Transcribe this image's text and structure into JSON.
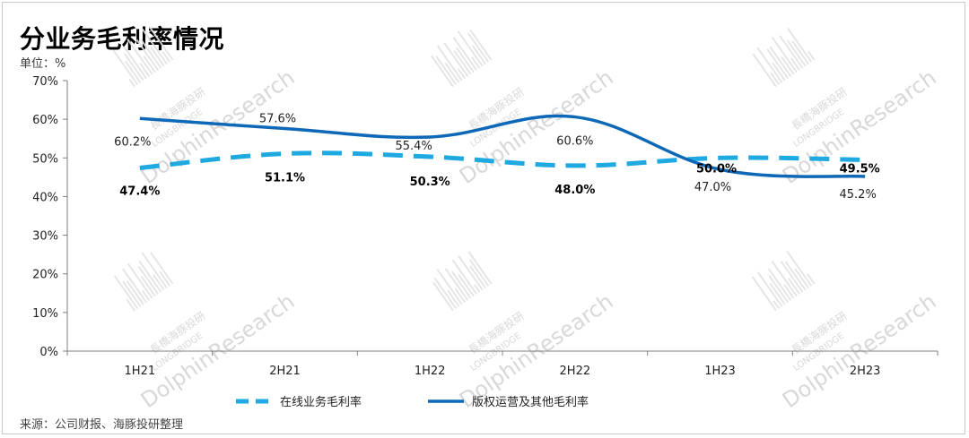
{
  "title": "分业务毛利率情况",
  "unit_label": "单位：%",
  "source": "来源：公司财报、海豚投研整理",
  "watermark": {
    "line1": "長橋海豚投研",
    "line2": "LONGBRIDGE",
    "line3": "DolphinResearch"
  },
  "chart_data": {
    "type": "line",
    "categories": [
      "1H21",
      "2H21",
      "1H22",
      "2H22",
      "1H23",
      "2H23"
    ],
    "ylim": [
      0,
      70
    ],
    "yticks": [
      "0%",
      "10%",
      "20%",
      "30%",
      "40%",
      "50%",
      "60%",
      "70%"
    ],
    "ytick_values": [
      0,
      10,
      20,
      30,
      40,
      50,
      60,
      70
    ],
    "grid": false,
    "legend_position": "bottom",
    "series": [
      {
        "name": "在线业务毛利率",
        "values": [
          47.4,
          51.1,
          50.3,
          48.0,
          50.0,
          49.5
        ],
        "labels": [
          "47.4%",
          "51.1%",
          "50.3%",
          "48.0%",
          "50.0%",
          "49.5%"
        ],
        "color": "#1ea9e1",
        "style": "dashed"
      },
      {
        "name": "版权运营及其他毛利率",
        "values": [
          60.2,
          57.6,
          55.4,
          60.6,
          47.0,
          45.2
        ],
        "labels": [
          "60.2%",
          "57.6%",
          "55.4%",
          "60.6%",
          "47.0%",
          "45.2%"
        ],
        "color": "#0d68b8",
        "style": "solid"
      }
    ]
  }
}
